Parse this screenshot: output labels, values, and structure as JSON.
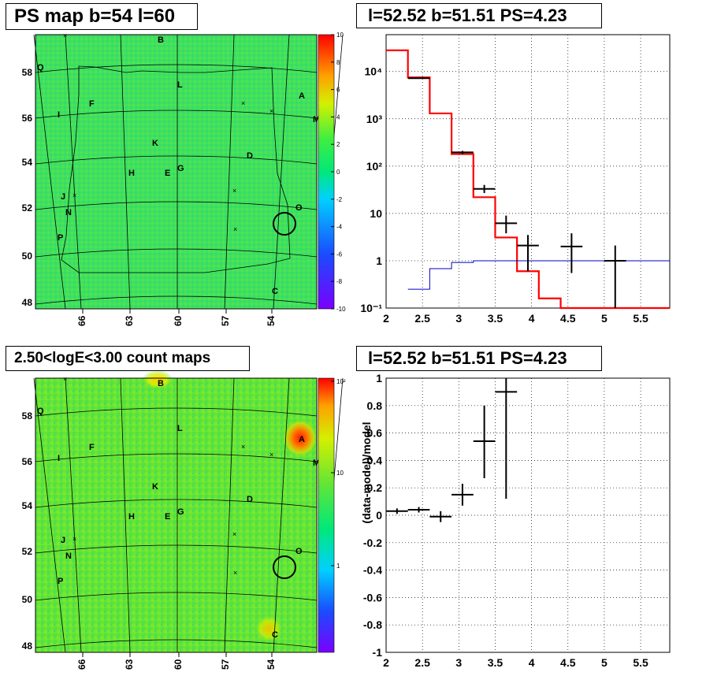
{
  "panels": {
    "map1": {
      "title": "PS map b=54 l=60"
    },
    "spec1": {
      "title": "l=52.52 b=51.51 PS=4.23"
    },
    "map2": {
      "title": "2.50<logE<3.00 count maps"
    },
    "spec2": {
      "title": "l=52.52 b=51.51 PS=4.23"
    }
  },
  "map_axes": {
    "x_ticks": [
      "66",
      "63",
      "60",
      "57",
      "54"
    ],
    "y_ticks": [
      "58",
      "56",
      "54",
      "52",
      "50",
      "48"
    ]
  },
  "source_labels": [
    "B",
    "Q",
    "L",
    "A",
    "F",
    "I",
    "M",
    "K",
    "D",
    "G",
    "E",
    "H",
    "J",
    "N",
    "O",
    "P",
    "C"
  ],
  "colorbar1": {
    "ticks": [
      "10",
      "8",
      "6",
      "4",
      "2",
      "0",
      "-2",
      "-4",
      "-6",
      "-8",
      "-10"
    ],
    "range": [
      -10,
      10
    ]
  },
  "colorbar2": {
    "ticks": [
      "10²",
      "10",
      "1"
    ]
  },
  "colors": {
    "map_background_ps": "#3fe060",
    "map_background_counts": "#66e633",
    "model_total": "#ff0000",
    "model_background": "#0000cc",
    "data": "#000000"
  },
  "chart_data": [
    {
      "type": "line",
      "title": "l=52.52 b=51.51 PS=4.23",
      "xlabel": "",
      "ylabel": "",
      "xlim": [
        2,
        5.9
      ],
      "ylim": [
        0.1,
        60000
      ],
      "yscale": "log",
      "x_ticks": [
        "2",
        "2.5",
        "3",
        "3.5",
        "4",
        "4.5",
        "5",
        "5.5"
      ],
      "y_ticks": [
        "10⁻¹",
        "1",
        "10",
        "10²",
        "10³",
        "10⁴"
      ],
      "grid": true,
      "series": [
        {
          "name": "",
          "style": "step",
          "color": "#ff0000",
          "bins": [
            [
              2.0,
              2.3,
              28000
            ],
            [
              2.3,
              2.6,
              7500
            ],
            [
              2.6,
              2.9,
              1300
            ],
            [
              2.9,
              3.2,
              180
            ],
            [
              3.2,
              3.5,
              22
            ],
            [
              3.5,
              3.8,
              3.1
            ],
            [
              3.8,
              4.1,
              0.6
            ],
            [
              4.1,
              4.4,
              0.16
            ],
            [
              4.4,
              5.9,
              0.1
            ]
          ]
        },
        {
          "name": "",
          "style": "step",
          "color": "#0000cc",
          "bins": [
            [
              2.3,
              2.6,
              0.25
            ],
            [
              2.6,
              2.9,
              0.68
            ],
            [
              2.9,
              3.2,
              0.92
            ],
            [
              3.2,
              5.9,
              1.0
            ]
          ]
        },
        {
          "name": "",
          "style": "errorbar",
          "color": "#000000",
          "points": [
            {
              "x": 2.45,
              "xerr": 0.15,
              "y": 7200,
              "ylo": 7000,
              "yhi": 7400
            },
            {
              "x": 3.05,
              "xerr": 0.15,
              "y": 195,
              "ylo": 180,
              "yhi": 210
            },
            {
              "x": 3.35,
              "xerr": 0.15,
              "y": 33,
              "ylo": 27,
              "yhi": 40
            },
            {
              "x": 3.65,
              "xerr": 0.15,
              "y": 6.2,
              "ylo": 3.8,
              "yhi": 9
            },
            {
              "x": 3.95,
              "xerr": 0.15,
              "y": 2.1,
              "ylo": 0.6,
              "yhi": 3.5
            },
            {
              "x": 4.55,
              "xerr": 0.15,
              "y": 2.0,
              "ylo": 0.55,
              "yhi": 3.8
            },
            {
              "x": 5.15,
              "xerr": 0.15,
              "y": 1.0,
              "ylo": 0.1,
              "yhi": 2.1
            }
          ]
        }
      ]
    },
    {
      "type": "scatter",
      "title": "l=52.52 b=51.51 PS=4.23",
      "xlabel": "",
      "ylabel": "(data-model)/model",
      "xlim": [
        2,
        5.9
      ],
      "ylim": [
        -1,
        1
      ],
      "x_ticks": [
        "2",
        "2.5",
        "3",
        "3.5",
        "4",
        "4.5",
        "5",
        "5.5"
      ],
      "y_ticks": [
        "-1",
        "-0.8",
        "-0.6",
        "-0.4",
        "-0.2",
        "0",
        "0.2",
        "0.4",
        "0.6",
        "0.8",
        "1"
      ],
      "grid": true,
      "series": [
        {
          "name": "",
          "style": "errorbar",
          "color": "#000000",
          "points": [
            {
              "x": 2.15,
              "xerr": 0.15,
              "y": 0.03,
              "ylo": 0.01,
              "yhi": 0.05
            },
            {
              "x": 2.45,
              "xerr": 0.15,
              "y": 0.04,
              "ylo": 0.02,
              "yhi": 0.06
            },
            {
              "x": 2.75,
              "xerr": 0.15,
              "y": -0.01,
              "ylo": -0.05,
              "yhi": 0.03
            },
            {
              "x": 3.05,
              "xerr": 0.15,
              "y": 0.15,
              "ylo": 0.07,
              "yhi": 0.23
            },
            {
              "x": 3.35,
              "xerr": 0.15,
              "y": 0.54,
              "ylo": 0.27,
              "yhi": 0.8
            },
            {
              "x": 3.65,
              "xerr": 0.15,
              "y": 0.9,
              "ylo": 0.12,
              "yhi": 1.0
            }
          ]
        }
      ]
    }
  ]
}
